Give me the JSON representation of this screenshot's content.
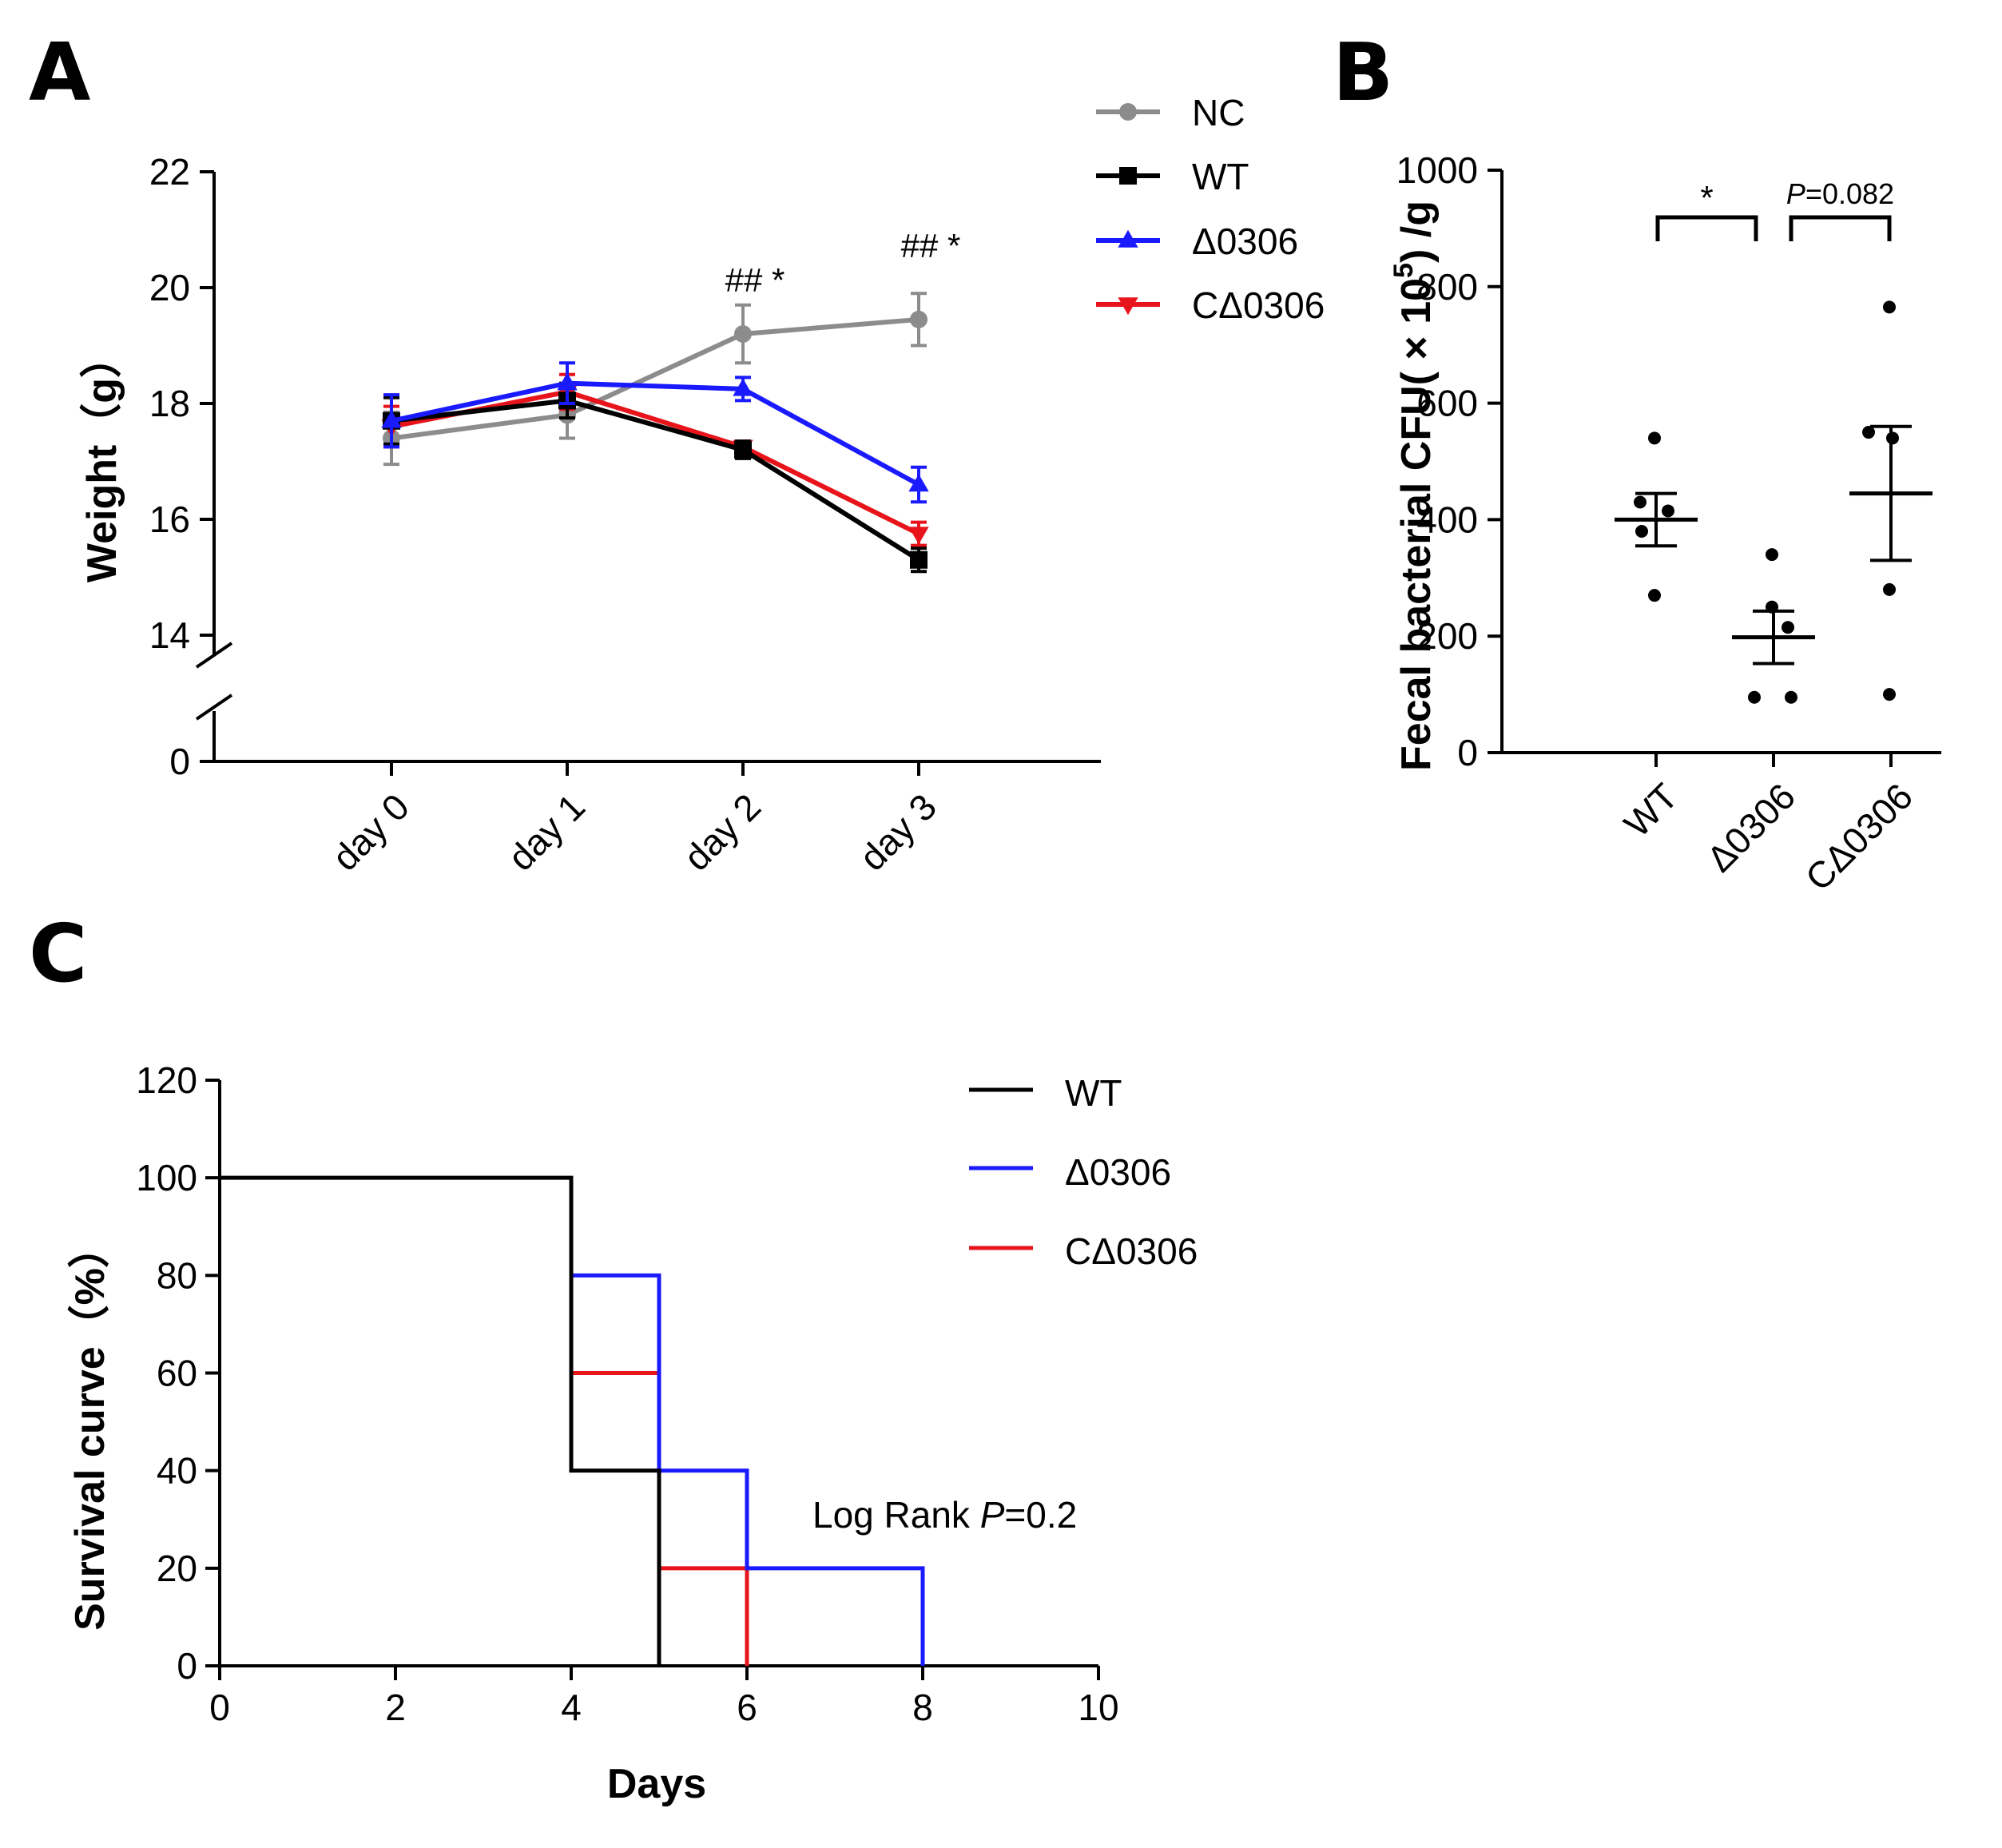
{
  "panels": {
    "a": "A",
    "b": "B",
    "c": "C"
  },
  "colors": {
    "NC": "#8c8c8c",
    "WT": "#000000",
    "D0306": "#1a1aff",
    "CD0306": "#e8141b"
  },
  "chart_data": [
    {
      "type": "line",
      "panel": "A",
      "title": "",
      "xlabel": "",
      "ylabel": "Weight（g）",
      "categories": [
        "day 0",
        "day 1",
        "day 2",
        "day 3"
      ],
      "yticks": [
        "0",
        "14",
        "16",
        "18",
        "20",
        "22"
      ],
      "ylim": [
        13.5,
        22
      ],
      "axis_break": [
        0,
        13.5
      ],
      "legend_position": "top-right",
      "series": [
        {
          "name": "NC",
          "marker": "circle",
          "values": [
            17.4,
            17.8,
            19.2,
            19.45
          ],
          "errors": [
            0.45,
            0.4,
            0.5,
            0.45
          ]
        },
        {
          "name": "WT",
          "marker": "square",
          "values": [
            17.7,
            18.05,
            17.2,
            15.3
          ],
          "errors": [
            0.4,
            0.3,
            0.15,
            0.2
          ]
        },
        {
          "name": "Δ0306",
          "marker": "triangle-up",
          "values": [
            17.7,
            18.35,
            18.25,
            16.6
          ],
          "errors": [
            0.45,
            0.35,
            0.2,
            0.3
          ]
        },
        {
          "name": "CΔ0306",
          "marker": "triangle-down",
          "values": [
            17.6,
            18.2,
            17.25,
            15.75
          ],
          "errors": [
            0.35,
            0.3,
            0.1,
            0.2
          ]
        }
      ],
      "annotations": [
        {
          "category": "day 2",
          "text": "## *"
        },
        {
          "category": "day 3",
          "text": "## *"
        }
      ]
    },
    {
      "type": "scatter",
      "panel": "B",
      "title": "",
      "ylabel": "Fecal bacterial CFU( × 10",
      "ylabel_sup": "5",
      "ylabel_tail": ") /g",
      "categories": [
        "WT",
        "Δ0306",
        "CΔ0306"
      ],
      "yticks": [
        "0",
        "200",
        "400",
        "600",
        "800",
        "1000"
      ],
      "ylim": [
        0,
        1000
      ],
      "points": [
        [
          540,
          430,
          415,
          380,
          270
        ],
        [
          340,
          250,
          215,
          95,
          95
        ],
        [
          765,
          550,
          540,
          280,
          100
        ]
      ],
      "mean": [
        400,
        198,
        445
      ],
      "sem": [
        45,
        45,
        115
      ],
      "comparisons": [
        {
          "from": "WT",
          "to": "Δ0306",
          "label": "*",
          "label_italic": "",
          "label_rest": ""
        },
        {
          "from": "Δ0306",
          "to": "CΔ0306",
          "label": "",
          "label_italic": "P",
          "label_rest": "=0.082"
        }
      ]
    },
    {
      "type": "line",
      "subtype": "step",
      "panel": "C",
      "title": "",
      "xlabel": "Days",
      "ylabel": "Survival curve（%）",
      "xlim": [
        0,
        10
      ],
      "ylim": [
        0,
        120
      ],
      "xticks": [
        "0",
        "2",
        "4",
        "6",
        "8",
        "10"
      ],
      "yticks": [
        "0",
        "20",
        "40",
        "60",
        "80",
        "100",
        "120"
      ],
      "legend_position": "top-right",
      "series": [
        {
          "name": "WT",
          "steps": [
            [
              0,
              100
            ],
            [
              4,
              100
            ],
            [
              4,
              40
            ],
            [
              5,
              40
            ],
            [
              5,
              0
            ]
          ]
        },
        {
          "name": "Δ0306",
          "steps": [
            [
              4,
              80
            ],
            [
              5,
              80
            ],
            [
              5,
              40
            ],
            [
              6,
              40
            ],
            [
              6,
              20
            ],
            [
              8,
              20
            ],
            [
              8,
              0
            ]
          ]
        },
        {
          "name": "CΔ0306",
          "steps": [
            [
              4,
              60
            ],
            [
              5,
              60
            ],
            [
              5,
              20
            ],
            [
              6,
              20
            ],
            [
              6,
              0
            ]
          ]
        }
      ],
      "annotation": {
        "prefix": "Log Rank ",
        "italic": "P",
        "suffix": "=0.2"
      }
    }
  ]
}
